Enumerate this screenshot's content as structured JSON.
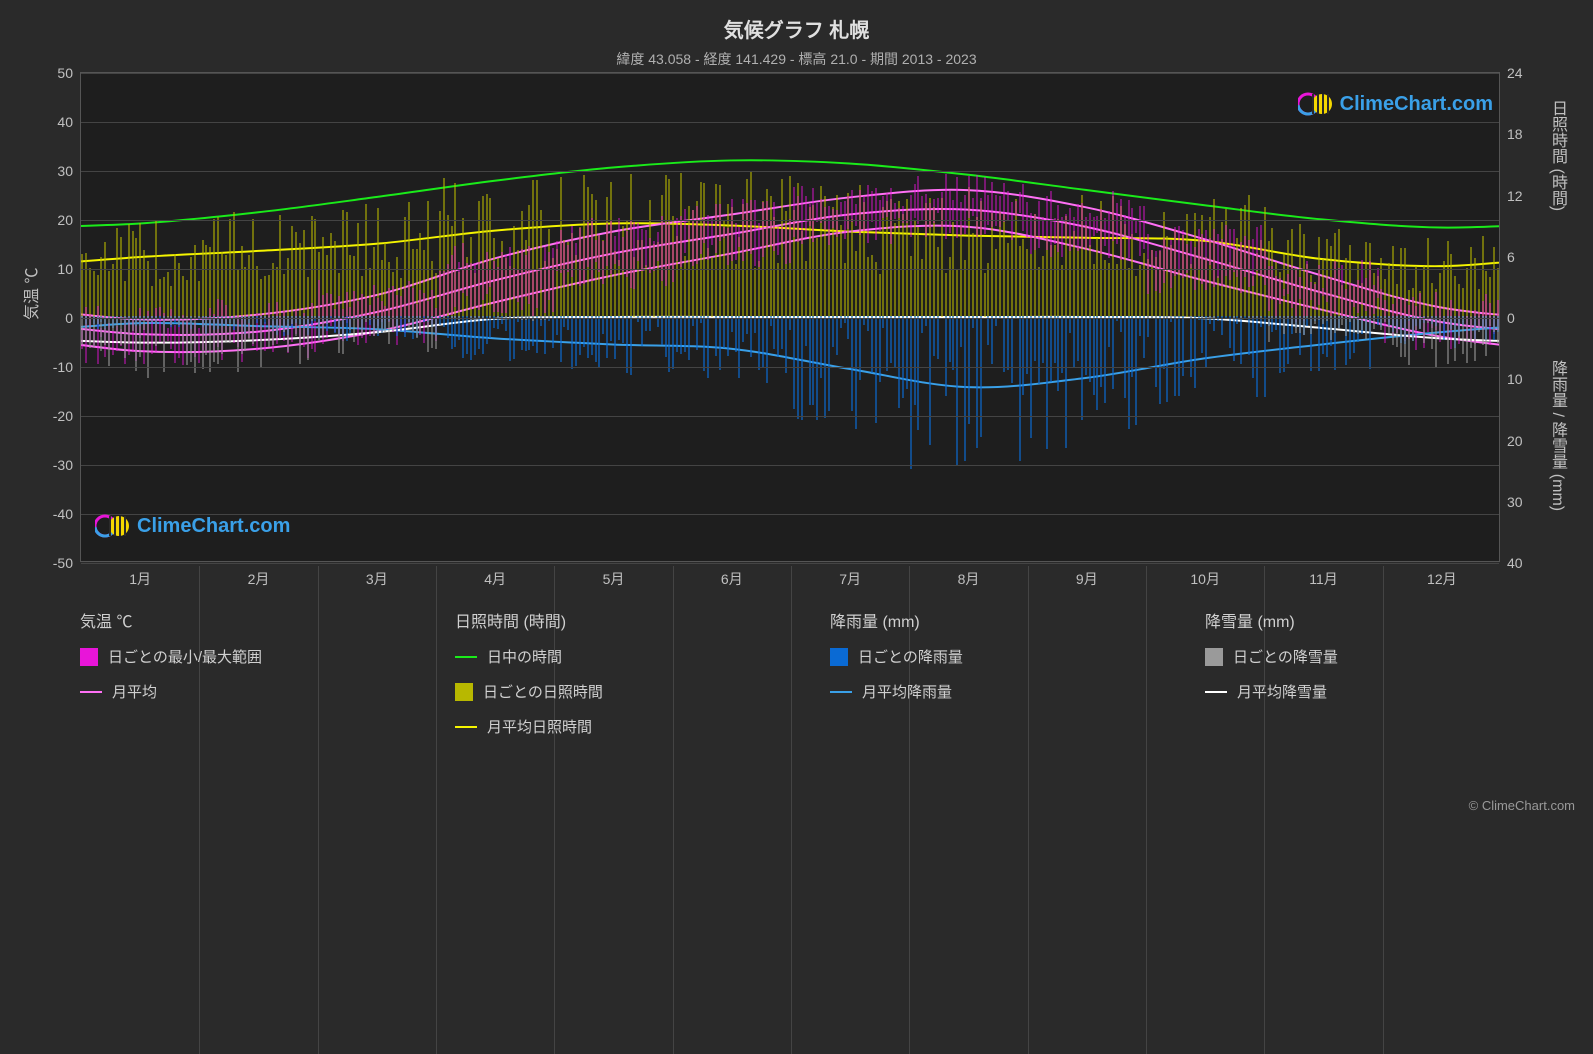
{
  "title": "気候グラフ 札幌",
  "subtitle": "緯度 43.058 - 経度 141.429 - 標高 21.0 - 期間 2013 - 2023",
  "watermark_text": "ClimeChart.com",
  "watermark_color": "#3aa0e8",
  "copyright": "© ClimeChart.com",
  "plot": {
    "type": "climate-chart",
    "background_color": "#1e1e1e",
    "grid_color": "#444444",
    "text_color": "#c0c0c0",
    "left_axis": {
      "label": "気温 ℃",
      "min": -50,
      "max": 50,
      "ticks": [
        -50,
        -40,
        -30,
        -20,
        -10,
        0,
        10,
        20,
        30,
        40,
        50
      ]
    },
    "right_axis_top": {
      "label": "日照時間 (時間)",
      "min": 0,
      "max": 24,
      "ticks": [
        0,
        6,
        12,
        18,
        24
      ],
      "zero_at_temp": 0,
      "top_at_temp": 50
    },
    "right_axis_bottom": {
      "label": "降雨量 / 降雪量 (mm)",
      "min": 0,
      "max": 40,
      "ticks": [
        0,
        10,
        20,
        30,
        40
      ],
      "zero_at_temp": 0,
      "bottom_at_temp": -50
    },
    "x_axis": {
      "labels": [
        "1月",
        "2月",
        "3月",
        "4月",
        "5月",
        "6月",
        "7月",
        "8月",
        "9月",
        "10月",
        "11月",
        "12月"
      ]
    },
    "colors": {
      "temp_range": "#e815d9",
      "temp_avg": "#ff70f5",
      "daytime": "#1aeb1a",
      "sunlight_daily": "#b8b800",
      "sunlight_avg": "#f5f500",
      "rain_daily": "#0a6ad4",
      "rain_avg": "#3aa0e8",
      "snow_daily": "#9a9a9a",
      "snow_avg": "#ffffff"
    },
    "monthly": {
      "temp_avg": [
        -3.5,
        -3.0,
        1.0,
        7.5,
        13.0,
        17.0,
        21.0,
        22.0,
        18.5,
        12.0,
        5.0,
        -1.0
      ],
      "temp_min": [
        -7.0,
        -6.5,
        -3.0,
        3.0,
        8.5,
        13.0,
        17.5,
        18.5,
        14.0,
        7.5,
        1.5,
        -4.0
      ],
      "temp_max": [
        -0.5,
        0.5,
        4.5,
        12.0,
        17.5,
        21.0,
        24.5,
        26.0,
        22.5,
        16.0,
        8.5,
        2.0
      ],
      "daytime_hours": [
        9.2,
        10.3,
        11.8,
        13.4,
        14.7,
        15.4,
        15.1,
        14.0,
        12.5,
        11.0,
        9.6,
        8.8
      ],
      "sunlight_avg": [
        5.9,
        6.5,
        7.2,
        8.5,
        9.2,
        9.0,
        8.4,
        8.0,
        7.8,
        7.5,
        5.7,
        5.0
      ],
      "rain_avg": [
        1.0,
        1.5,
        2.0,
        3.5,
        4.5,
        5.2,
        8.5,
        11.5,
        10.0,
        6.8,
        4.5,
        2.5
      ],
      "snow_avg": [
        4.2,
        3.8,
        2.5,
        0.3,
        0.0,
        0.0,
        0.0,
        0.0,
        0.0,
        0.2,
        1.8,
        3.5
      ]
    },
    "line_width": 2
  },
  "legend": {
    "col1_title": "気温 ℃",
    "col1_items": [
      {
        "type": "swatch",
        "color": "#e815d9",
        "label": "日ごとの最小/最大範囲"
      },
      {
        "type": "line",
        "color": "#ff70f5",
        "label": "月平均"
      }
    ],
    "col2_title": "日照時間 (時間)",
    "col2_items": [
      {
        "type": "line",
        "color": "#1aeb1a",
        "label": "日中の時間"
      },
      {
        "type": "swatch",
        "color": "#b8b800",
        "label": "日ごとの日照時間"
      },
      {
        "type": "line",
        "color": "#f5f500",
        "label": "月平均日照時間"
      }
    ],
    "col3_title": "降雨量 (mm)",
    "col3_items": [
      {
        "type": "swatch",
        "color": "#0a6ad4",
        "label": "日ごとの降雨量"
      },
      {
        "type": "line",
        "color": "#3aa0e8",
        "label": "月平均降雨量"
      }
    ],
    "col4_title": "降雪量 (mm)",
    "col4_items": [
      {
        "type": "swatch",
        "color": "#9a9a9a",
        "label": "日ごとの降雪量"
      },
      {
        "type": "line",
        "color": "#ffffff",
        "label": "月平均降雪量"
      }
    ]
  }
}
